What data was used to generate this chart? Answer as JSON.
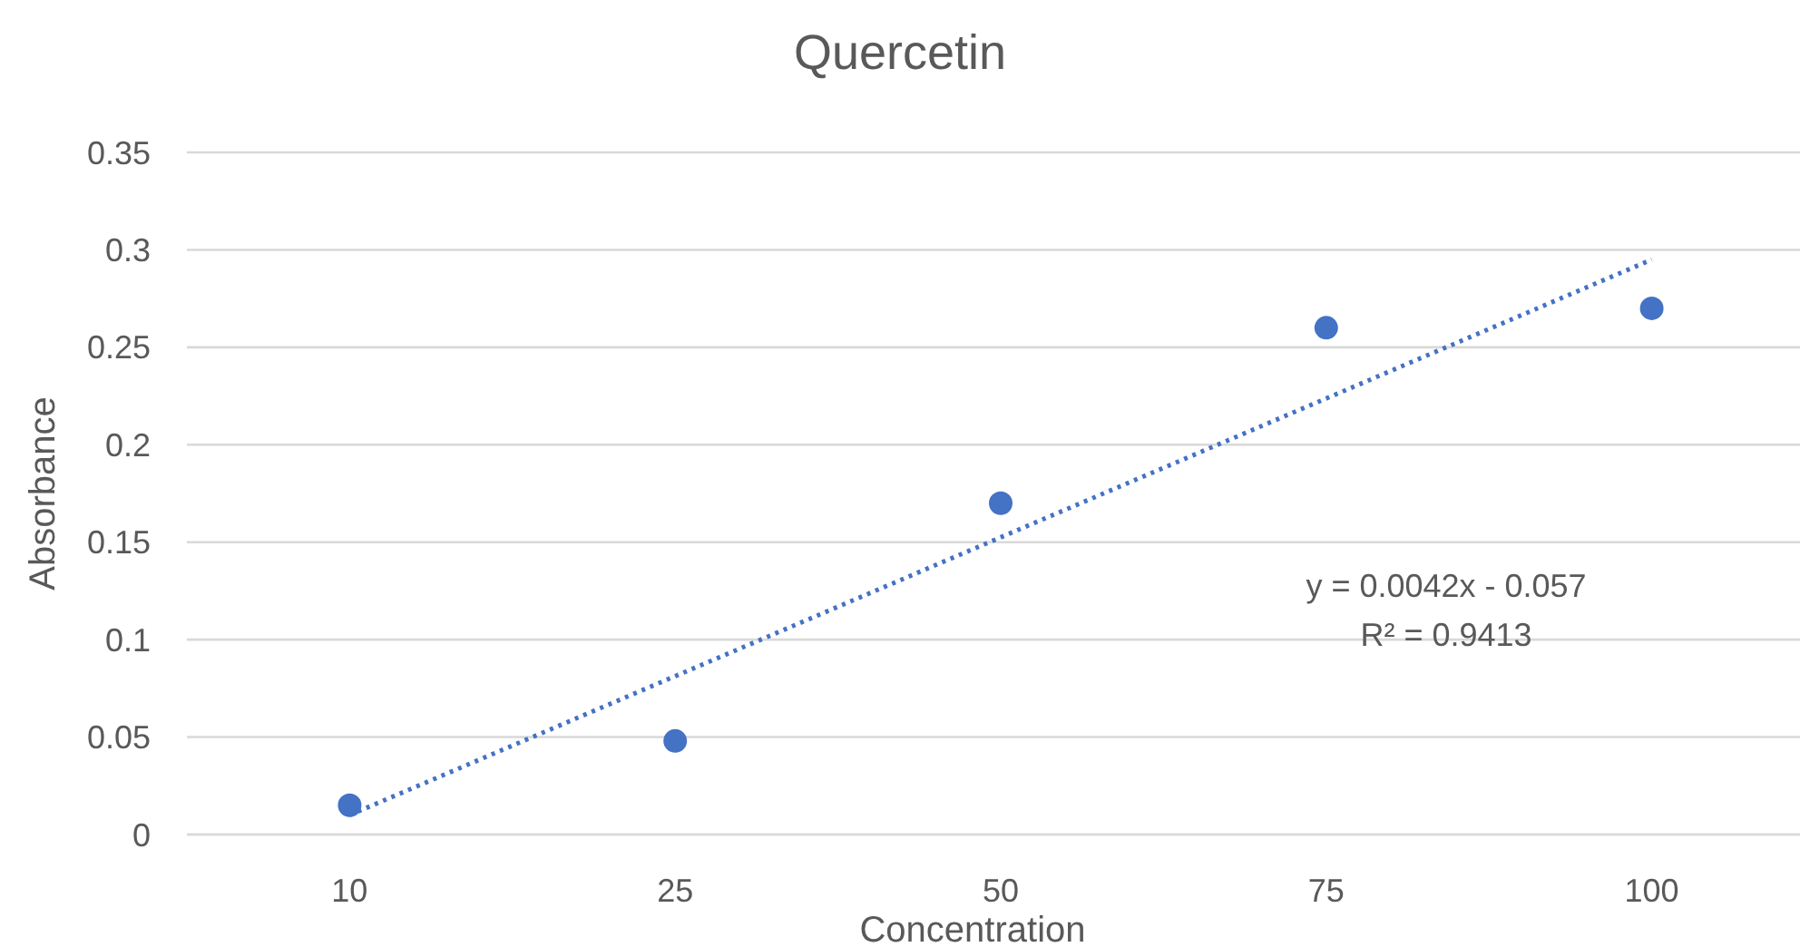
{
  "chart_data": {
    "type": "scatter",
    "title": "Quercetin",
    "xlabel": "Concentration",
    "ylabel": "Absorbance",
    "categories": [
      "10",
      "25",
      "50",
      "75",
      "100"
    ],
    "ylim": [
      0,
      0.35
    ],
    "yticks": [
      0,
      0.05,
      0.1,
      0.15,
      0.2,
      0.25,
      0.3,
      0.35
    ],
    "grid": "y",
    "marker": "circle",
    "series": [
      {
        "color": "#4472c4",
        "values": [
          0.015,
          0.048,
          0.17,
          0.26,
          0.27
        ]
      },
      {
        "type": "line",
        "color": "#4472c4",
        "line_style": "dotted",
        "marker": "none",
        "x": [
          "10",
          "100"
        ],
        "values": [
          0.01,
          0.295
        ]
      }
    ],
    "annotations": [
      "y = 0.0042x - 0.057",
      "R² = 0.9413"
    ]
  }
}
